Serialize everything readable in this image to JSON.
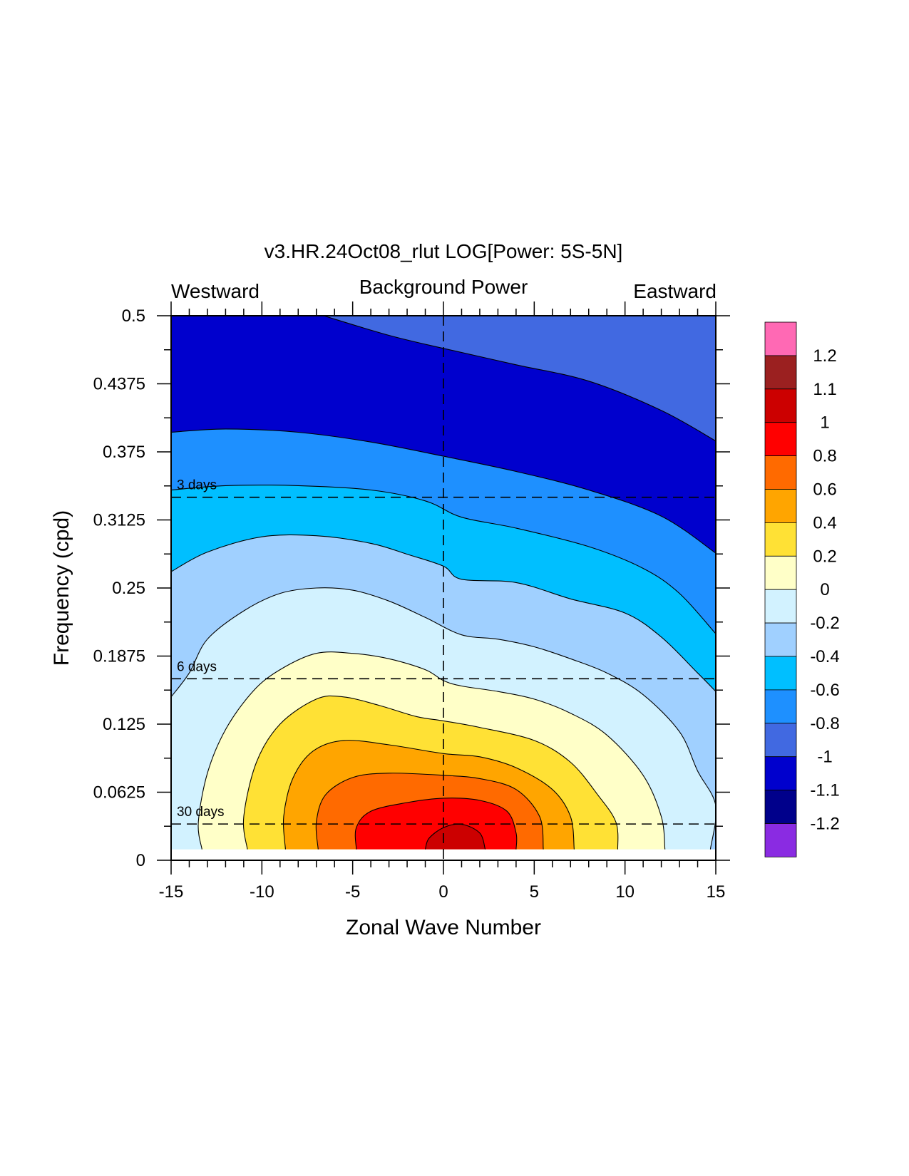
{
  "chart_data": {
    "type": "contour",
    "title": "v3.HR.24Oct08_rlut LOG[Power: 5S-5N]",
    "subtitle": "Background Power",
    "left_label": "Westward",
    "right_label": "Eastward",
    "xlabel": "Zonal Wave Number",
    "ylabel": "Frequency (cpd)",
    "xlim": [
      -15,
      15
    ],
    "ylim": [
      0,
      0.5
    ],
    "x_ticks": [
      "-15",
      "-10",
      "-5",
      "0",
      "5",
      "10",
      "15"
    ],
    "y_ticks": [
      "0",
      "0.0625",
      "0.125",
      "0.1875",
      "0.25",
      "0.3125",
      "0.375",
      "0.4375",
      "0.5"
    ],
    "period_lines": [
      {
        "label": "3 days",
        "frequency": 0.3333
      },
      {
        "label": "6 days",
        "frequency": 0.1667
      },
      {
        "label": "30 days",
        "frequency": 0.0333
      }
    ],
    "contour_levels": [
      -1.2,
      -1.1,
      -1,
      -0.8,
      -0.6,
      -0.4,
      -0.2,
      0,
      0.2,
      0.4,
      0.6,
      0.8,
      1,
      1.1,
      1.2
    ],
    "colorbar_labels": [
      "1.2",
      "1.1",
      "1",
      "0.8",
      "0.6",
      "0.4",
      "0.2",
      "0",
      "-0.2",
      "-0.4",
      "-0.6",
      "-0.8",
      "-1",
      "-1.1",
      "-1.2"
    ],
    "colorbar_colors": [
      "#ff69b4",
      "#9b2020",
      "#cc0000",
      "#ff0000",
      "#ff6a00",
      "#ffa500",
      "#ffe135",
      "#ffffc8",
      "#d2f2ff",
      "#a0d0ff",
      "#00bfff",
      "#1e90ff",
      "#4169e1",
      "#0000cd",
      "#00008b",
      "#8a2be2"
    ],
    "contour_boundaries": [
      {
        "level": -1,
        "points": [
          [
            -6.6,
            0.5
          ],
          [
            -3,
            0.482
          ],
          [
            0,
            0.47
          ],
          [
            4,
            0.455
          ],
          [
            8,
            0.44
          ],
          [
            12,
            0.413
          ],
          [
            15,
            0.385
          ]
        ]
      },
      {
        "level": -0.8,
        "points": [
          [
            -15,
            0.393
          ],
          [
            -12,
            0.396
          ],
          [
            -8,
            0.393
          ],
          [
            -4,
            0.384
          ],
          [
            0,
            0.371
          ],
          [
            4,
            0.357
          ],
          [
            8,
            0.34
          ],
          [
            12,
            0.316
          ],
          [
            15,
            0.282
          ]
        ]
      },
      {
        "level": -0.6,
        "points": [
          [
            -15,
            0.34
          ],
          [
            -12,
            0.344
          ],
          [
            -8,
            0.344
          ],
          [
            -4,
            0.34
          ],
          [
            -1,
            0.33
          ],
          [
            1,
            0.315
          ],
          [
            4,
            0.305
          ],
          [
            8,
            0.288
          ],
          [
            11,
            0.268
          ],
          [
            13,
            0.245
          ],
          [
            15,
            0.208
          ]
        ]
      },
      {
        "level": -0.4,
        "points": [
          [
            -15,
            0.265
          ],
          [
            -13,
            0.283
          ],
          [
            -10,
            0.297
          ],
          [
            -7,
            0.298
          ],
          [
            -4,
            0.291
          ],
          [
            -2,
            0.281
          ],
          [
            0,
            0.27
          ],
          [
            1,
            0.258
          ],
          [
            4,
            0.255
          ],
          [
            7,
            0.24
          ],
          [
            10,
            0.227
          ],
          [
            12,
            0.205
          ],
          [
            14,
            0.172
          ],
          [
            15,
            0.155
          ]
        ]
      },
      {
        "level": -0.2,
        "points": [
          [
            -15,
            0.15
          ],
          [
            -14,
            0.172
          ],
          [
            -13,
            0.203
          ],
          [
            -11,
            0.229
          ],
          [
            -9,
            0.245
          ],
          [
            -7,
            0.25
          ],
          [
            -5,
            0.248
          ],
          [
            -3,
            0.238
          ],
          [
            -1,
            0.223
          ],
          [
            1,
            0.207
          ],
          [
            3,
            0.203
          ],
          [
            5,
            0.196
          ],
          [
            7,
            0.185
          ],
          [
            9,
            0.172
          ],
          [
            11,
            0.152
          ],
          [
            13,
            0.118
          ],
          [
            14,
            0.082
          ],
          [
            15,
            0.05
          ],
          [
            14.7,
            0.01
          ]
        ]
      },
      {
        "level": 0,
        "points": [
          [
            -13.3,
            0.01
          ],
          [
            -13.5,
            0.035
          ],
          [
            -13,
            0.08
          ],
          [
            -12,
            0.12
          ],
          [
            -10.5,
            0.155
          ],
          [
            -9,
            0.175
          ],
          [
            -7,
            0.19
          ],
          [
            -5,
            0.19
          ],
          [
            -3,
            0.185
          ],
          [
            -1,
            0.175
          ],
          [
            0,
            0.165
          ],
          [
            1,
            0.16
          ],
          [
            3,
            0.155
          ],
          [
            5,
            0.148
          ],
          [
            7,
            0.135
          ],
          [
            9,
            0.115
          ],
          [
            11,
            0.078
          ],
          [
            12,
            0.04
          ],
          [
            12.2,
            0.01
          ]
        ]
      },
      {
        "level": 0.2,
        "points": [
          [
            -10.8,
            0.01
          ],
          [
            -11,
            0.04
          ],
          [
            -10.3,
            0.09
          ],
          [
            -9,
            0.125
          ],
          [
            -7,
            0.148
          ],
          [
            -5.5,
            0.15
          ],
          [
            -3.5,
            0.142
          ],
          [
            -1.5,
            0.132
          ],
          [
            0,
            0.128
          ],
          [
            2,
            0.122
          ],
          [
            5,
            0.11
          ],
          [
            7,
            0.09
          ],
          [
            8.5,
            0.06
          ],
          [
            9.5,
            0.035
          ],
          [
            9.6,
            0.01
          ]
        ]
      },
      {
        "level": 0.4,
        "points": [
          [
            -8.7,
            0.01
          ],
          [
            -8.8,
            0.04
          ],
          [
            -8.3,
            0.075
          ],
          [
            -7.2,
            0.1
          ],
          [
            -5.5,
            0.11
          ],
          [
            -3,
            0.106
          ],
          [
            0,
            0.098
          ],
          [
            2,
            0.095
          ],
          [
            4,
            0.085
          ],
          [
            6,
            0.065
          ],
          [
            7,
            0.04
          ],
          [
            7.2,
            0.01
          ]
        ]
      },
      {
        "level": 0.6,
        "points": [
          [
            -6.9,
            0.01
          ],
          [
            -7,
            0.035
          ],
          [
            -6.5,
            0.06
          ],
          [
            -5,
            0.076
          ],
          [
            -3,
            0.08
          ],
          [
            0,
            0.078
          ],
          [
            2,
            0.075
          ],
          [
            4,
            0.065
          ],
          [
            5.3,
            0.04
          ],
          [
            5.5,
            0.01
          ]
        ]
      },
      {
        "level": 0.8,
        "points": [
          [
            -4.8,
            0.01
          ],
          [
            -4.8,
            0.03
          ],
          [
            -4,
            0.045
          ],
          [
            -2,
            0.053
          ],
          [
            0,
            0.057
          ],
          [
            2,
            0.055
          ],
          [
            3.5,
            0.045
          ],
          [
            4,
            0.025
          ],
          [
            4,
            0.01
          ]
        ]
      },
      {
        "level": 1,
        "points": [
          [
            -1,
            0.01
          ],
          [
            -0.8,
            0.02
          ],
          [
            0,
            0.03
          ],
          [
            1,
            0.033
          ],
          [
            2,
            0.025
          ],
          [
            2.3,
            0.01
          ]
        ]
      }
    ],
    "x_grid_line": 0,
    "grid": false
  }
}
